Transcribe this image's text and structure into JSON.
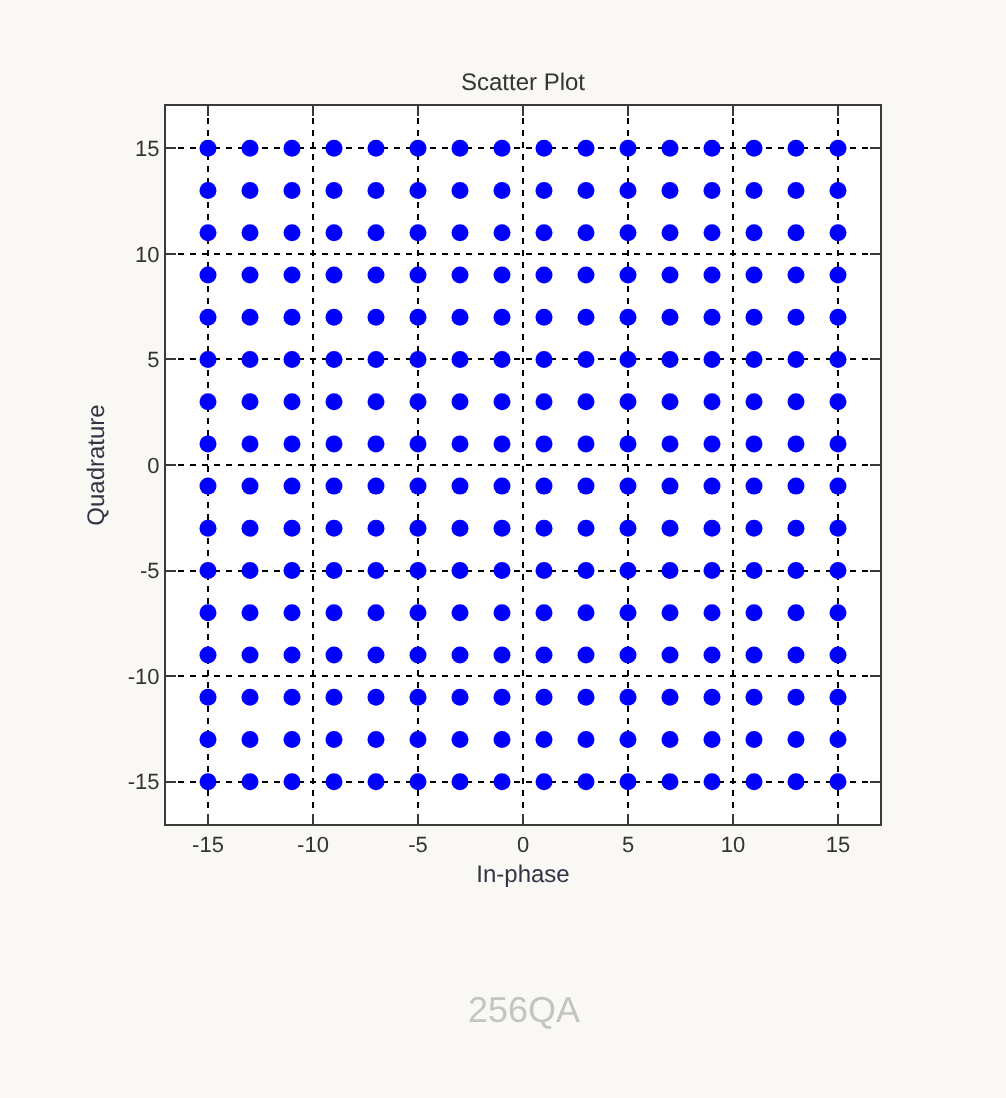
{
  "chart_data": {
    "type": "scatter",
    "title": "Scatter Plot",
    "xlabel": "In-phase",
    "ylabel": "Quadrature",
    "x": [
      -15,
      -13,
      -11,
      -9,
      -7,
      -5,
      -3,
      -1,
      1,
      3,
      5,
      7,
      9,
      11,
      13,
      15,
      -15,
      -13,
      -11,
      -9,
      -7,
      -5,
      -3,
      -1,
      1,
      3,
      5,
      7,
      9,
      11,
      13,
      15,
      -15,
      -13,
      -11,
      -9,
      -7,
      -5,
      -3,
      -1,
      1,
      3,
      5,
      7,
      9,
      11,
      13,
      15,
      -15,
      -13,
      -11,
      -9,
      -7,
      -5,
      -3,
      -1,
      1,
      3,
      5,
      7,
      9,
      11,
      13,
      15,
      -15,
      -13,
      -11,
      -9,
      -7,
      -5,
      -3,
      -1,
      1,
      3,
      5,
      7,
      9,
      11,
      13,
      15,
      -15,
      -13,
      -11,
      -9,
      -7,
      -5,
      -3,
      -1,
      1,
      3,
      5,
      7,
      9,
      11,
      13,
      15,
      -15,
      -13,
      -11,
      -9,
      -7,
      -5,
      -3,
      -1,
      1,
      3,
      5,
      7,
      9,
      11,
      13,
      15,
      -15,
      -13,
      -11,
      -9,
      -7,
      -5,
      -3,
      -1,
      1,
      3,
      5,
      7,
      9,
      11,
      13,
      15,
      -15,
      -13,
      -11,
      -9,
      -7,
      -5,
      -3,
      -1,
      1,
      3,
      5,
      7,
      9,
      11,
      13,
      15,
      -15,
      -13,
      -11,
      -9,
      -7,
      -5,
      -3,
      -1,
      1,
      3,
      5,
      7,
      9,
      11,
      13,
      15,
      -15,
      -13,
      -11,
      -9,
      -7,
      -5,
      -3,
      -1,
      1,
      3,
      5,
      7,
      9,
      11,
      13,
      15,
      -15,
      -13,
      -11,
      -9,
      -7,
      -5,
      -3,
      -1,
      1,
      3,
      5,
      7,
      9,
      11,
      13,
      15,
      -15,
      -13,
      -11,
      -9,
      -7,
      -5,
      -3,
      -1,
      1,
      3,
      5,
      7,
      9,
      11,
      13,
      15,
      -15,
      -13,
      -11,
      -9,
      -7,
      -5,
      -3,
      -1,
      1,
      3,
      5,
      7,
      9,
      11,
      13,
      15,
      -15,
      -13,
      -11,
      -9,
      -7,
      -5,
      -3,
      -1,
      1,
      3,
      5,
      7,
      9,
      11,
      13,
      15,
      -15,
      -13,
      -11,
      -9,
      -7,
      -5,
      -3,
      -1,
      1,
      3,
      5,
      7,
      9,
      11,
      13,
      15
    ],
    "values": [
      15,
      15,
      15,
      15,
      15,
      15,
      15,
      15,
      15,
      15,
      15,
      15,
      15,
      15,
      15,
      15,
      13,
      13,
      13,
      13,
      13,
      13,
      13,
      13,
      13,
      13,
      13,
      13,
      13,
      13,
      13,
      13,
      11,
      11,
      11,
      11,
      11,
      11,
      11,
      11,
      11,
      11,
      11,
      11,
      11,
      11,
      11,
      11,
      9,
      9,
      9,
      9,
      9,
      9,
      9,
      9,
      9,
      9,
      9,
      9,
      9,
      9,
      9,
      9,
      7,
      7,
      7,
      7,
      7,
      7,
      7,
      7,
      7,
      7,
      7,
      7,
      7,
      7,
      7,
      7,
      5,
      5,
      5,
      5,
      5,
      5,
      5,
      5,
      5,
      5,
      5,
      5,
      5,
      5,
      5,
      5,
      3,
      3,
      3,
      3,
      3,
      3,
      3,
      3,
      3,
      3,
      3,
      3,
      3,
      3,
      3,
      3,
      1,
      1,
      1,
      1,
      1,
      1,
      1,
      1,
      1,
      1,
      1,
      1,
      1,
      1,
      1,
      1,
      -1,
      -1,
      -1,
      -1,
      -1,
      -1,
      -1,
      -1,
      -1,
      -1,
      -1,
      -1,
      -1,
      -1,
      -1,
      -1,
      -3,
      -3,
      -3,
      -3,
      -3,
      -3,
      -3,
      -3,
      -3,
      -3,
      -3,
      -3,
      -3,
      -3,
      -3,
      -3,
      -5,
      -5,
      -5,
      -5,
      -5,
      -5,
      -5,
      -5,
      -5,
      -5,
      -5,
      -5,
      -5,
      -5,
      -5,
      -5,
      -7,
      -7,
      -7,
      -7,
      -7,
      -7,
      -7,
      -7,
      -7,
      -7,
      -7,
      -7,
      -7,
      -7,
      -7,
      -7,
      -9,
      -9,
      -9,
      -9,
      -9,
      -9,
      -9,
      -9,
      -9,
      -9,
      -9,
      -9,
      -9,
      -9,
      -9,
      -9,
      -11,
      -11,
      -11,
      -11,
      -11,
      -11,
      -11,
      -11,
      -11,
      -11,
      -11,
      -11,
      -11,
      -11,
      -11,
      -11,
      -13,
      -13,
      -13,
      -13,
      -13,
      -13,
      -13,
      -13,
      -13,
      -13,
      -13,
      -13,
      -13,
      -13,
      -13,
      -13,
      -15,
      -15,
      -15,
      -15,
      -15,
      -15,
      -15,
      -15,
      -15,
      -15,
      -15,
      -15,
      -15,
      -15,
      -15,
      -15
    ],
    "color": "#0000ff",
    "marker": "circle",
    "grid": true,
    "xlim": [
      -17,
      17
    ],
    "xticks": [
      -15,
      -10,
      -5,
      0,
      5,
      10,
      15
    ],
    "ylim": [
      -17,
      17
    ],
    "yticks": [
      -15,
      -10,
      -5,
      0,
      5,
      10,
      15
    ],
    "annotations": [
      "256QA"
    ]
  }
}
